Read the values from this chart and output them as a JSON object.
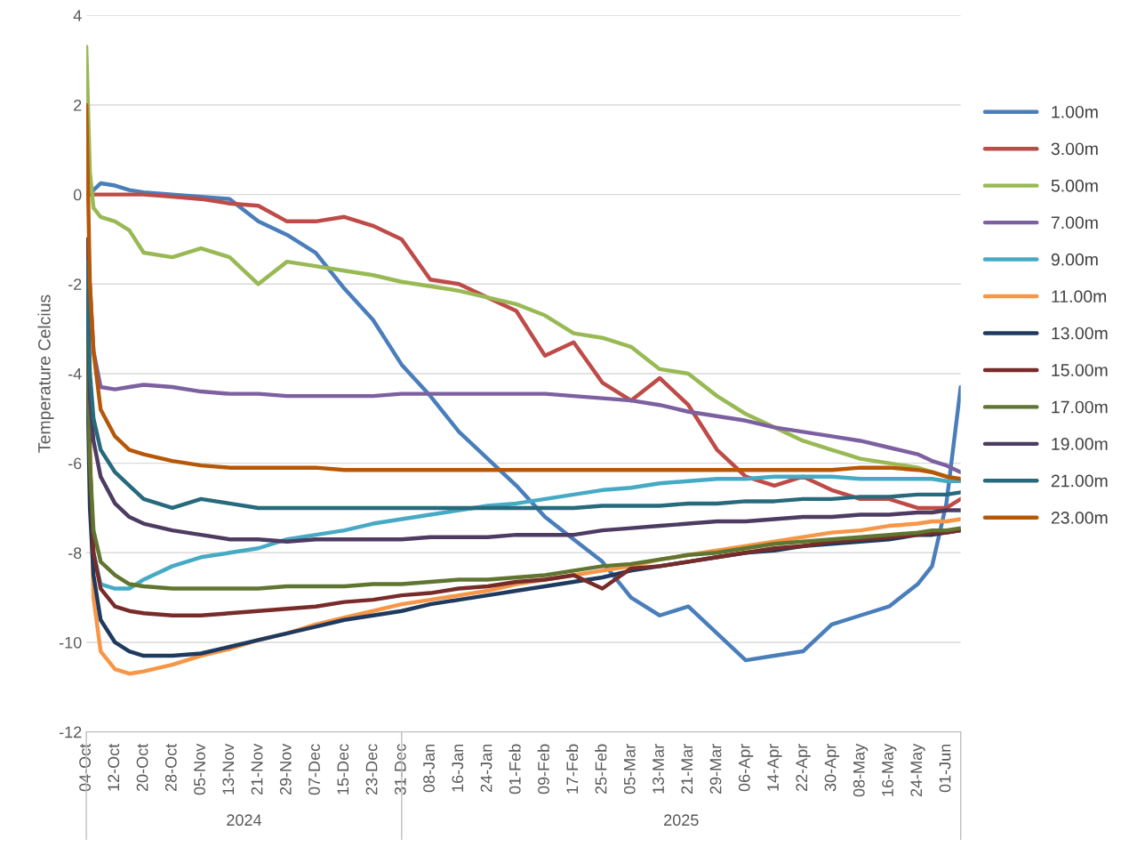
{
  "chart_data": {
    "type": "line",
    "ylabel": "Temperature Celcius",
    "x": [
      "2024-10-04",
      "2024-10-05",
      "2024-10-06",
      "2024-10-08",
      "2024-10-12",
      "2024-10-16",
      "2024-10-20",
      "2024-10-28",
      "2024-11-05",
      "2024-11-13",
      "2024-11-21",
      "2024-11-29",
      "2024-12-07",
      "2024-12-15",
      "2024-12-23",
      "2024-12-31",
      "2025-01-08",
      "2025-01-16",
      "2025-01-24",
      "2025-02-01",
      "2025-02-09",
      "2025-02-17",
      "2025-02-25",
      "2025-03-05",
      "2025-03-13",
      "2025-03-21",
      "2025-03-29",
      "2025-04-06",
      "2025-04-14",
      "2025-04-22",
      "2025-04-30",
      "2025-05-08",
      "2025-05-16",
      "2025-05-24",
      "2025-05-28",
      "2025-06-01",
      "2025-06-05"
    ],
    "series": [
      {
        "name": "1.00m",
        "color": "#4a7ebb",
        "values": [
          null,
          0,
          0.1,
          0.25,
          0.2,
          0.1,
          0.05,
          0,
          -0.05,
          -0.1,
          -0.6,
          -0.9,
          -1.3,
          -2.1,
          -2.8,
          -3.8,
          -4.5,
          -5.3,
          -5.9,
          -6.5,
          -7.2,
          -7.7,
          -8.2,
          -9.0,
          -9.4,
          -9.2,
          -9.8,
          -10.4,
          -10.3,
          -10.2,
          -9.6,
          -9.4,
          -9.2,
          -8.7,
          -8.3,
          -6.9,
          -4.3
        ]
      },
      {
        "name": "3.00m",
        "color": "#be4b48",
        "values": [
          0,
          0,
          0,
          0,
          0,
          0,
          0,
          -0.05,
          -0.1,
          -0.2,
          -0.25,
          -0.6,
          -0.6,
          -0.5,
          -0.7,
          -1.0,
          -1.9,
          -2.0,
          -2.3,
          -2.6,
          -3.6,
          -3.3,
          -4.2,
          -4.6,
          -4.1,
          -4.7,
          -5.7,
          -6.3,
          -6.5,
          -6.3,
          -6.6,
          -6.8,
          -6.8,
          -7.0,
          -7.0,
          -7.0,
          -6.8
        ]
      },
      {
        "name": "5.00m",
        "color": "#98b954",
        "values": [
          3.3,
          0.5,
          -0.3,
          -0.5,
          -0.6,
          -0.8,
          -1.3,
          -1.4,
          -1.2,
          -1.4,
          -2.0,
          -1.5,
          -1.6,
          -1.7,
          -1.8,
          -1.95,
          -2.05,
          -2.15,
          -2.3,
          -2.45,
          -2.7,
          -3.1,
          -3.2,
          -3.4,
          -3.9,
          -4.0,
          -4.5,
          -4.9,
          -5.2,
          -5.5,
          -5.7,
          -5.9,
          -6.0,
          -6.1,
          -6.2,
          -6.3,
          -6.4
        ]
      },
      {
        "name": "7.00m",
        "color": "#7d60a0",
        "values": [
          null,
          -2,
          -3.5,
          -4.3,
          -4.35,
          -4.3,
          -4.25,
          -4.3,
          -4.4,
          -4.45,
          -4.45,
          -4.5,
          -4.5,
          -4.5,
          -4.5,
          -4.45,
          -4.45,
          -4.45,
          -4.45,
          -4.45,
          -4.45,
          -4.5,
          -4.55,
          -4.6,
          -4.7,
          -4.85,
          -4.95,
          -5.05,
          -5.2,
          -5.3,
          -5.4,
          -5.5,
          -5.65,
          -5.8,
          -5.95,
          -6.05,
          -6.2
        ]
      },
      {
        "name": "9.00m",
        "color": "#46aac5",
        "values": [
          -2,
          -6,
          -8,
          -8.7,
          -8.8,
          -8.8,
          -8.6,
          -8.3,
          -8.1,
          -8.0,
          -7.9,
          -7.7,
          -7.6,
          -7.5,
          -7.35,
          -7.25,
          -7.15,
          -7.05,
          -6.95,
          -6.9,
          -6.8,
          -6.7,
          -6.6,
          -6.55,
          -6.45,
          -6.4,
          -6.35,
          -6.35,
          -6.3,
          -6.3,
          -6.3,
          -6.35,
          -6.35,
          -6.35,
          -6.35,
          -6.4,
          -6.4
        ]
      },
      {
        "name": "11.00m",
        "color": "#f79646",
        "values": [
          -2,
          null,
          -9,
          -10.2,
          -10.6,
          -10.7,
          -10.65,
          -10.5,
          -10.3,
          -10.15,
          -9.95,
          -9.8,
          -9.6,
          -9.45,
          -9.3,
          -9.15,
          -9.05,
          -8.95,
          -8.85,
          -8.7,
          -8.6,
          -8.5,
          -8.4,
          -8.3,
          -8.15,
          -8.05,
          -7.95,
          -7.85,
          -7.75,
          -7.65,
          -7.55,
          -7.5,
          -7.4,
          -7.35,
          -7.3,
          -7.3,
          -7.25
        ]
      },
      {
        "name": "13.00m",
        "color": "#1f3a5f",
        "values": [
          -3,
          -7,
          -8.5,
          -9.5,
          -10.0,
          -10.2,
          -10.3,
          -10.3,
          -10.25,
          -10.1,
          -9.95,
          -9.8,
          -9.65,
          -9.5,
          -9.4,
          -9.3,
          -9.15,
          -9.05,
          -8.95,
          -8.85,
          -8.75,
          -8.65,
          -8.55,
          -8.4,
          -8.3,
          -8.2,
          -8.1,
          -8.0,
          -7.95,
          -7.85,
          -7.8,
          -7.75,
          -7.7,
          -7.6,
          -7.6,
          -7.55,
          -7.5
        ]
      },
      {
        "name": "15.00m",
        "color": "#772c2a",
        "values": [
          -1,
          -6,
          -8,
          -8.8,
          -9.2,
          -9.3,
          -9.35,
          -9.4,
          -9.4,
          -9.35,
          -9.3,
          -9.25,
          -9.2,
          -9.1,
          -9.05,
          -8.95,
          -8.9,
          -8.8,
          -8.75,
          -8.65,
          -8.6,
          -8.5,
          -8.8,
          -8.35,
          -8.3,
          -8.2,
          -8.1,
          -8.0,
          -7.9,
          -7.85,
          -7.75,
          -7.7,
          -7.65,
          -7.6,
          -7.55,
          -7.55,
          -7.5
        ]
      },
      {
        "name": "17.00m",
        "color": "#5f7530",
        "values": [
          -2,
          -6,
          -7.5,
          -8.2,
          -8.5,
          -8.7,
          -8.75,
          -8.8,
          -8.8,
          -8.8,
          -8.8,
          -8.75,
          -8.75,
          -8.75,
          -8.7,
          -8.7,
          -8.65,
          -8.6,
          -8.6,
          -8.55,
          -8.5,
          -8.4,
          -8.3,
          -8.25,
          -8.15,
          -8.05,
          -8.0,
          -7.9,
          -7.8,
          -7.75,
          -7.7,
          -7.65,
          -7.6,
          -7.55,
          -7.5,
          -7.5,
          -7.45
        ]
      },
      {
        "name": "19.00m",
        "color": "#4d3b62",
        "values": [
          -1,
          -4.5,
          -5.5,
          -6.3,
          -6.9,
          -7.2,
          -7.35,
          -7.5,
          -7.6,
          -7.7,
          -7.7,
          -7.75,
          -7.7,
          -7.7,
          -7.7,
          -7.7,
          -7.65,
          -7.65,
          -7.65,
          -7.6,
          -7.6,
          -7.6,
          -7.5,
          -7.45,
          -7.4,
          -7.35,
          -7.3,
          -7.3,
          -7.25,
          -7.2,
          -7.2,
          -7.15,
          -7.15,
          -7.1,
          -7.1,
          -7.05,
          -7.05
        ]
      },
      {
        "name": "21.00m",
        "color": "#276a7c",
        "values": [
          -1.5,
          -4,
          -5,
          -5.7,
          -6.2,
          -6.5,
          -6.8,
          -7.0,
          -6.8,
          -6.9,
          -7.0,
          -7.0,
          -7.0,
          -7.0,
          -7.0,
          -7.0,
          -7.0,
          -7.0,
          -7.0,
          -7.0,
          -7.0,
          -7.0,
          -6.95,
          -6.95,
          -6.95,
          -6.9,
          -6.9,
          -6.85,
          -6.85,
          -6.8,
          -6.8,
          -6.75,
          -6.75,
          -6.7,
          -6.7,
          -6.7,
          -6.65
        ]
      },
      {
        "name": "23.00m",
        "color": "#b65708",
        "values": [
          2,
          -2,
          -3.5,
          -4.8,
          -5.4,
          -5.7,
          -5.8,
          -5.95,
          -6.05,
          -6.1,
          -6.1,
          -6.1,
          -6.1,
          -6.15,
          -6.15,
          -6.15,
          -6.15,
          -6.15,
          -6.15,
          -6.15,
          -6.15,
          -6.15,
          -6.15,
          -6.15,
          -6.15,
          -6.15,
          -6.15,
          -6.15,
          -6.15,
          -6.15,
          -6.15,
          -6.1,
          -6.1,
          -6.15,
          -6.2,
          -6.3,
          -6.35
        ]
      }
    ],
    "xlim": [
      "2024-10-04",
      "2025-06-05"
    ],
    "xticks": [
      {
        "value": "2024-10-04",
        "label": "04-Oct"
      },
      {
        "value": "2024-10-12",
        "label": "12-Oct"
      },
      {
        "value": "2024-10-20",
        "label": "20-Oct"
      },
      {
        "value": "2024-10-28",
        "label": "28-Oct"
      },
      {
        "value": "2024-11-05",
        "label": "05-Nov"
      },
      {
        "value": "2024-11-13",
        "label": "13-Nov"
      },
      {
        "value": "2024-11-21",
        "label": "21-Nov"
      },
      {
        "value": "2024-11-29",
        "label": "29-Nov"
      },
      {
        "value": "2024-12-07",
        "label": "07-Dec"
      },
      {
        "value": "2024-12-15",
        "label": "15-Dec"
      },
      {
        "value": "2024-12-23",
        "label": "23-Dec"
      },
      {
        "value": "2024-12-31",
        "label": "31-Dec"
      },
      {
        "value": "2025-01-08",
        "label": "08-Jan"
      },
      {
        "value": "2025-01-16",
        "label": "16-Jan"
      },
      {
        "value": "2025-01-24",
        "label": "24-Jan"
      },
      {
        "value": "2025-02-01",
        "label": "01-Feb"
      },
      {
        "value": "2025-02-09",
        "label": "09-Feb"
      },
      {
        "value": "2025-02-17",
        "label": "17-Feb"
      },
      {
        "value": "2025-02-25",
        "label": "25-Feb"
      },
      {
        "value": "2025-03-05",
        "label": "05-Mar"
      },
      {
        "value": "2025-03-13",
        "label": "13-Mar"
      },
      {
        "value": "2025-03-21",
        "label": "21-Mar"
      },
      {
        "value": "2025-03-29",
        "label": "29-Mar"
      },
      {
        "value": "2025-04-06",
        "label": "06-Apr"
      },
      {
        "value": "2025-04-14",
        "label": "14-Apr"
      },
      {
        "value": "2025-04-22",
        "label": "22-Apr"
      },
      {
        "value": "2025-04-30",
        "label": "30-Apr"
      },
      {
        "value": "2025-05-08",
        "label": "08-May"
      },
      {
        "value": "2025-05-16",
        "label": "16-May"
      },
      {
        "value": "2025-05-24",
        "label": "24-May"
      },
      {
        "value": "2025-06-01",
        "label": "01-Jun"
      }
    ],
    "ylim": [
      -12,
      4
    ],
    "yticks": [
      -12,
      -10,
      -8,
      -6,
      -4,
      -2,
      0,
      2,
      4
    ],
    "annotations": [
      "2024",
      "2025"
    ],
    "grid": "y",
    "legend": "right",
    "marker": "none",
    "line_style": "solid"
  }
}
